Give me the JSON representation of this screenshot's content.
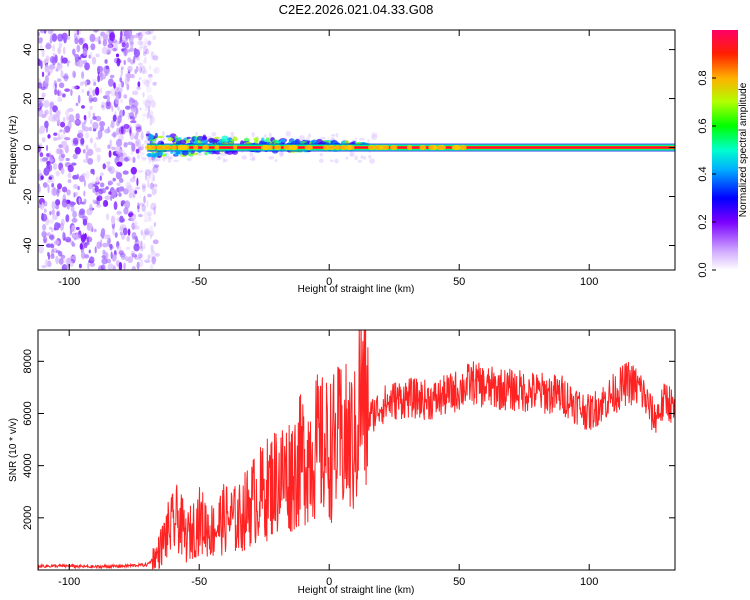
{
  "title": "C2E2.2026.021.04.33.G08",
  "colors": {
    "line": "#ff2222",
    "axis": "#000000",
    "background": "#ffffff"
  },
  "chart_data": [
    {
      "type": "heatmap",
      "xlabel": "Height of straight line (km)",
      "ylabel": "Frequency (Hz)",
      "xlim": [
        -112,
        133
      ],
      "ylim": [
        -50,
        48
      ],
      "x_ticks": [
        "-100",
        "-50",
        "0",
        "50",
        "100"
      ],
      "y_ticks": [
        "-40",
        "-20",
        "0",
        "20",
        "40"
      ],
      "colorbar": {
        "label": "Normalized spectral amplitude",
        "range": [
          0,
          1
        ],
        "ticks": [
          "0.0",
          "0.2",
          "0.4",
          "0.6",
          "0.8"
        ]
      },
      "regions": [
        {
          "name": "noise",
          "x_range": [
            -112,
            -70
          ],
          "freq_range": [
            -50,
            48
          ],
          "amplitude": 0.1
        },
        {
          "name": "onset",
          "x_range": [
            -70,
            15
          ],
          "freq_range": [
            -4,
            5
          ],
          "amplitude": 0.45
        },
        {
          "name": "tone",
          "x_range": [
            -70,
            133
          ],
          "frequency": 0,
          "amplitude": 0.95
        }
      ]
    },
    {
      "type": "line",
      "xlabel": "Height of straight line (km)",
      "ylabel": "SNR (10 * v/v)",
      "xlim": [
        -112,
        133
      ],
      "ylim": [
        0,
        9200
      ],
      "x_ticks": [
        "-100",
        "-50",
        "0",
        "50",
        "100"
      ],
      "y_ticks": [
        "2000",
        "4000",
        "6000",
        "8000"
      ],
      "series": [
        {
          "name": "SNR",
          "x": [
            -112,
            -100,
            -90,
            -80,
            -70,
            -66,
            -62,
            -58,
            -55,
            -50,
            -45,
            -40,
            -35,
            -30,
            -25,
            -20,
            -15,
            -10,
            -5,
            0,
            5,
            10,
            12,
            15,
            20,
            25,
            30,
            40,
            50,
            55,
            60,
            70,
            80,
            90,
            100,
            110,
            115,
            120,
            125,
            130,
            133
          ],
          "values": [
            150,
            150,
            120,
            150,
            200,
            600,
            1500,
            2000,
            1200,
            1900,
            1500,
            2000,
            1900,
            2600,
            3000,
            3500,
            3700,
            4300,
            4700,
            4600,
            5000,
            4800,
            7000,
            5800,
            6300,
            6500,
            6600,
            6500,
            6900,
            7200,
            7000,
            6900,
            6800,
            6700,
            6000,
            6800,
            7200,
            6900,
            5800,
            6600,
            6000
          ]
        }
      ]
    }
  ]
}
